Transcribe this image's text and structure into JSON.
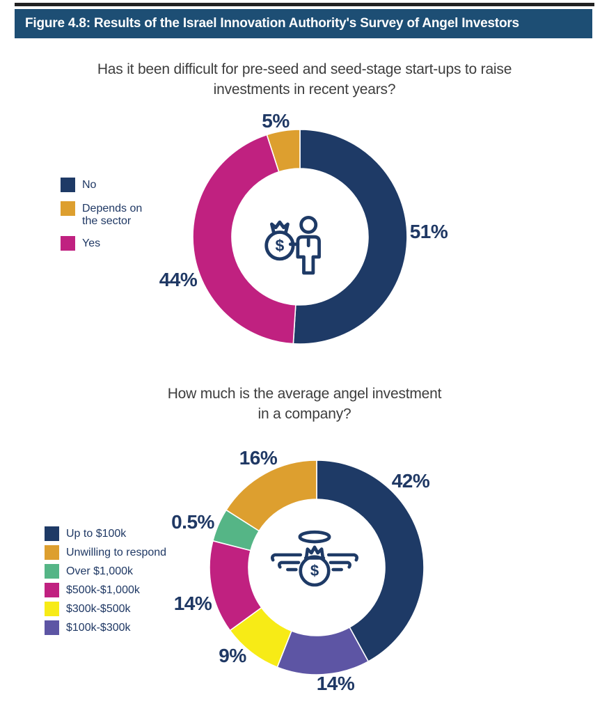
{
  "palette": {
    "header_bg": "#1d4e74",
    "top_strip": "#222222",
    "label_text": "#1f3864",
    "title_text": "#3d3d3d",
    "navy": "#1e3a66",
    "orange": "#dd9f2f",
    "magenta": "#c02180",
    "green": "#55b586",
    "yellow": "#f7eb16",
    "purple": "#5d55a4"
  },
  "header": {
    "title": "Figure 4.8: Results of the Israel Innovation Authority's Survey of Angel Investors"
  },
  "chart_data": [
    {
      "type": "pie",
      "donut": true,
      "legend_position": "left",
      "start_angle_deg": 0,
      "title": "Has it been difficult for pre-seed and seed-stage start-ups to raise investments in recent years?",
      "title_lines": [
        "Has it been difficult for pre-seed and seed-stage start-ups to raise",
        "investments in recent years?"
      ],
      "center_icon": "investor-with-money-bag",
      "slices": [
        {
          "label": "No",
          "value": 51,
          "value_label": "51%",
          "color": "#1e3a66"
        },
        {
          "label": "Depends on the sector",
          "value": 5,
          "value_label": "5%",
          "color": "#dd9f2f"
        },
        {
          "label": "Yes",
          "value": 44,
          "value_label": "44%",
          "color": "#c02180"
        }
      ],
      "draw_order": [
        0,
        2,
        1
      ]
    },
    {
      "type": "pie",
      "donut": true,
      "legend_position": "left",
      "start_angle_deg": 0,
      "title": "How much is the average angel investment in a company?",
      "title_lines": [
        "How much is the average angel investment",
        "in a company?"
      ],
      "center_icon": "winged-money-bag-with-halo",
      "slices": [
        {
          "label": "Up to $100k",
          "value": 42,
          "value_label": "42%",
          "color": "#1e3a66"
        },
        {
          "label": "Unwilling to respond",
          "value": 16,
          "value_label": "16%",
          "color": "#dd9f2f"
        },
        {
          "label": "Over $1,000k",
          "value": 0.5,
          "value_label": "0.5%",
          "color": "#55b586",
          "drawn_value": 5
        },
        {
          "label": "$500k-$1,000k",
          "value": 14,
          "value_label": "14%",
          "color": "#c02180"
        },
        {
          "label": "$300k-$500k",
          "value": 9,
          "value_label": "9%",
          "color": "#f7eb16"
        },
        {
          "label": "$100k-$300k",
          "value": 14,
          "value_label": "14%",
          "color": "#5d55a4"
        }
      ],
      "draw_order": [
        0,
        5,
        4,
        3,
        2,
        1
      ]
    }
  ]
}
